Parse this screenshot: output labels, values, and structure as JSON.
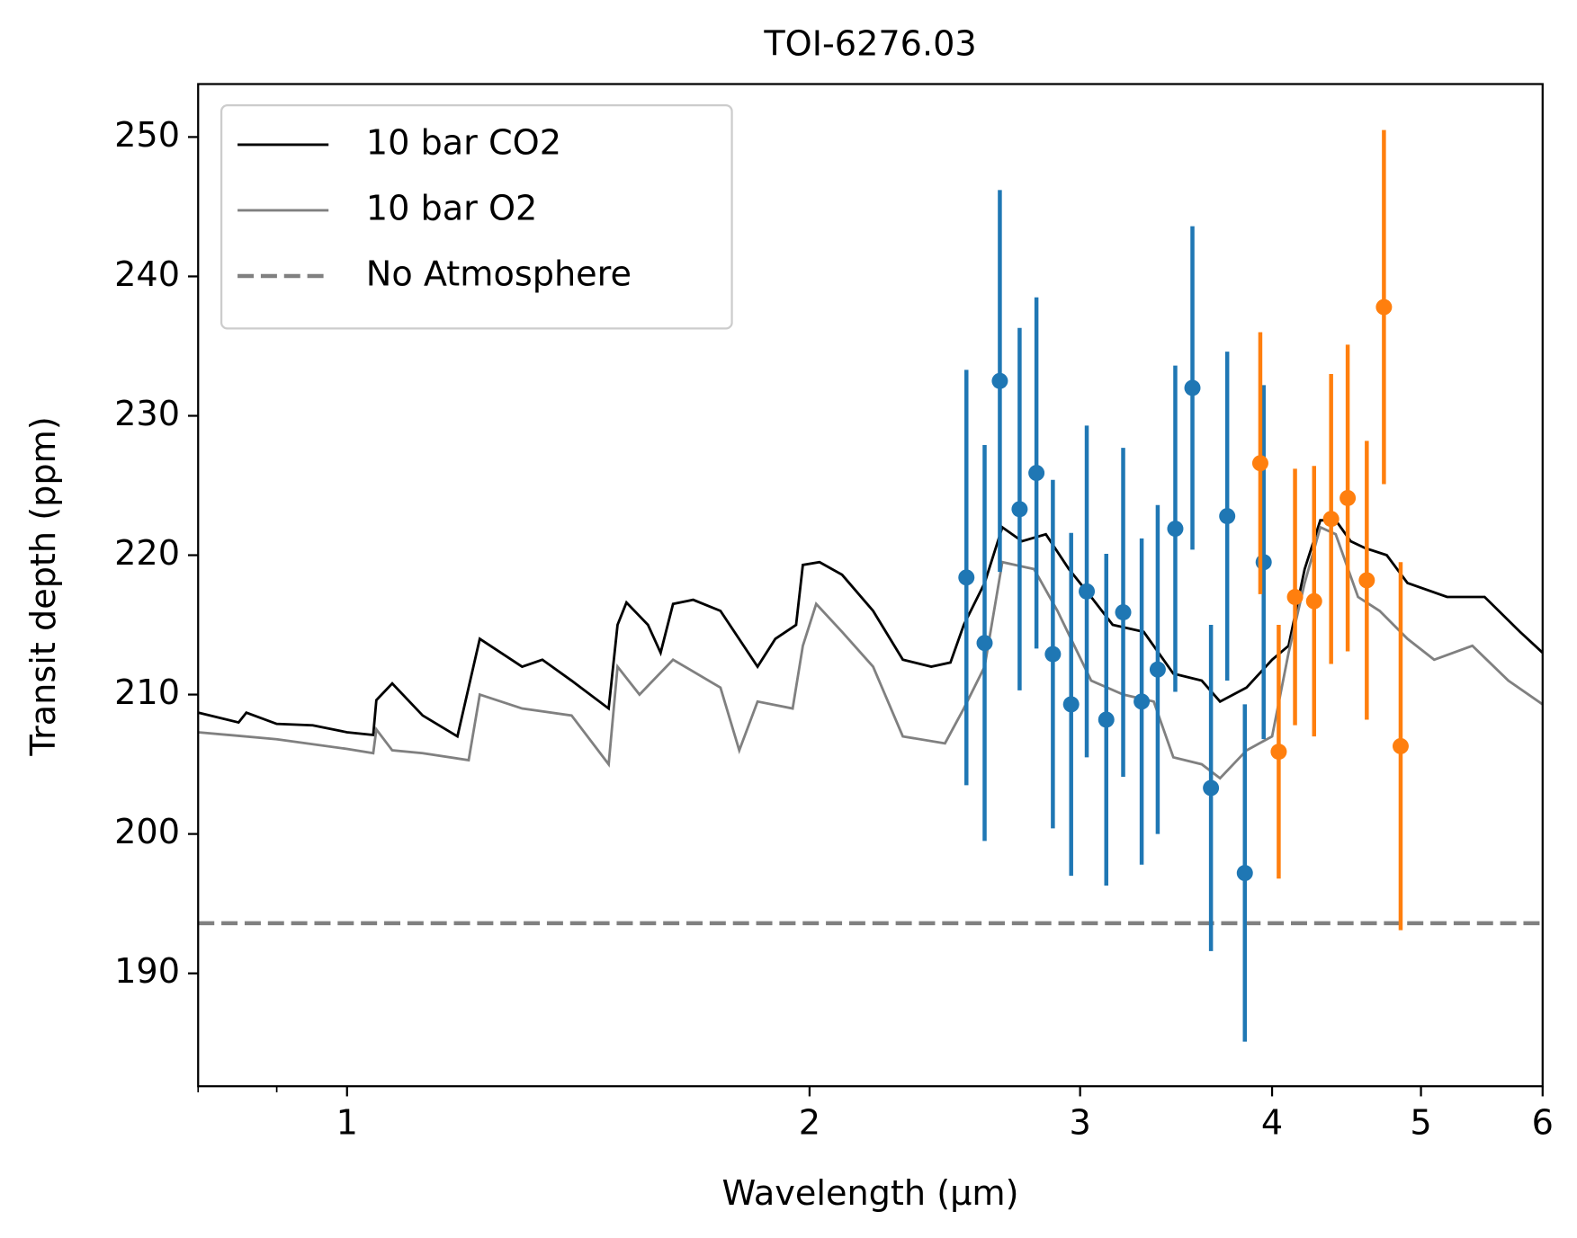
{
  "chart_data": {
    "type": "line",
    "title": "TOI-6276.03",
    "xlabel": "Wavelength (μm)",
    "ylabel": "Transit depth (ppm)",
    "xscale": "log",
    "xlim": [
      0.8,
      6
    ],
    "xticks": [
      1,
      2,
      3,
      4,
      5,
      6
    ],
    "xminorticks": [
      0.8,
      0.9
    ],
    "ylim": [
      181.9,
      253.8
    ],
    "yticks": [
      190,
      200,
      210,
      220,
      230,
      240,
      250
    ],
    "legend": "upper left",
    "series": [
      {
        "name": "10 bar CO2",
        "color": "#000000",
        "linestyle": "solid",
        "x": [
          0.8,
          0.85,
          0.86,
          0.9,
          0.95,
          1.0,
          1.04,
          1.045,
          1.07,
          1.12,
          1.18,
          1.22,
          1.3,
          1.34,
          1.4,
          1.48,
          1.5,
          1.52,
          1.57,
          1.6,
          1.63,
          1.68,
          1.75,
          1.85,
          1.9,
          1.96,
          1.98,
          2.03,
          2.1,
          2.2,
          2.3,
          2.4,
          2.47,
          2.52,
          2.6,
          2.67,
          2.75,
          2.85,
          2.95,
          3.05,
          3.15,
          3.3,
          3.45,
          3.6,
          3.7,
          3.85,
          4.0,
          4.1,
          4.2,
          4.3,
          4.4,
          4.5,
          4.6,
          4.75,
          4.9,
          5.2,
          5.5,
          5.8,
          6.0
        ],
        "values": [
          208.7,
          208.0,
          208.7,
          207.9,
          207.8,
          207.3,
          207.1,
          209.6,
          210.8,
          208.5,
          207.0,
          214.0,
          212.0,
          212.5,
          211.0,
          209.0,
          215.0,
          216.6,
          215.0,
          213.0,
          216.5,
          216.8,
          216.0,
          212.0,
          214.0,
          215.0,
          219.3,
          219.5,
          218.6,
          216.0,
          212.5,
          212.0,
          212.3,
          215.0,
          218.0,
          222.0,
          221.0,
          221.5,
          219.0,
          217.0,
          215.0,
          214.5,
          211.5,
          211.0,
          209.5,
          210.5,
          212.5,
          213.5,
          219.0,
          222.5,
          222.5,
          221.0,
          220.5,
          220.0,
          218.0,
          217.0,
          217.0,
          214.5,
          213.0
        ]
      },
      {
        "name": "10 bar O2",
        "color": "#808080",
        "linestyle": "solid",
        "x": [
          0.8,
          0.9,
          1.0,
          1.04,
          1.045,
          1.07,
          1.12,
          1.2,
          1.22,
          1.3,
          1.4,
          1.48,
          1.5,
          1.55,
          1.63,
          1.75,
          1.8,
          1.85,
          1.95,
          1.98,
          2.02,
          2.1,
          2.2,
          2.3,
          2.45,
          2.52,
          2.6,
          2.67,
          2.8,
          2.9,
          3.05,
          3.2,
          3.35,
          3.45,
          3.6,
          3.7,
          3.85,
          4.0,
          4.1,
          4.2,
          4.3,
          4.4,
          4.55,
          4.7,
          4.9,
          5.1,
          5.4,
          5.7,
          6.0
        ],
        "values": [
          207.3,
          206.8,
          206.1,
          205.8,
          207.5,
          206.0,
          205.8,
          205.3,
          210.0,
          209.0,
          208.5,
          205.0,
          212.0,
          210.0,
          212.5,
          210.5,
          206.0,
          209.5,
          209.0,
          213.5,
          216.5,
          214.5,
          212.0,
          207.0,
          206.5,
          209.0,
          212.0,
          219.5,
          219.0,
          216.0,
          211.0,
          210.0,
          209.5,
          205.5,
          205.0,
          204.0,
          206.0,
          207.0,
          213.0,
          218.0,
          222.0,
          221.5,
          217.0,
          216.0,
          214.0,
          212.5,
          213.5,
          211.0,
          209.3
        ]
      },
      {
        "name": "No Atmosphere",
        "color": "#808080",
        "linestyle": "dashed",
        "x": [
          0.8,
          6
        ],
        "values": [
          193.6,
          193.6
        ]
      },
      {
        "color": "#1f77b4",
        "linestyle": "errorbar",
        "x": [
          2.53,
          2.6,
          2.66,
          2.74,
          2.81,
          2.88,
          2.96,
          3.03,
          3.12,
          3.2,
          3.29,
          3.37,
          3.46,
          3.55,
          3.65,
          3.74,
          3.84,
          3.95
        ],
        "values": [
          218.4,
          213.7,
          232.5,
          223.3,
          225.9,
          212.9,
          209.3,
          217.4,
          208.2,
          215.9,
          209.5,
          211.8,
          221.9,
          232.0,
          203.3,
          222.8,
          197.2,
          219.5
        ],
        "errors": [
          14.9,
          14.2,
          13.7,
          13.0,
          12.6,
          12.5,
          12.3,
          11.9,
          11.9,
          11.8,
          11.7,
          11.8,
          11.7,
          11.6,
          11.7,
          11.8,
          12.1,
          12.7
        ]
      },
      {
        "color": "#ff7f0e",
        "linestyle": "errorbar",
        "x": [
          3.93,
          4.04,
          4.14,
          4.26,
          4.37,
          4.48,
          4.61,
          4.73,
          4.85
        ],
        "values": [
          226.6,
          205.9,
          217.0,
          216.7,
          222.6,
          224.1,
          218.2,
          237.8,
          206.3
        ],
        "errors": [
          9.4,
          9.1,
          9.2,
          9.7,
          10.4,
          11.0,
          10.0,
          12.7,
          13.2
        ]
      }
    ]
  }
}
